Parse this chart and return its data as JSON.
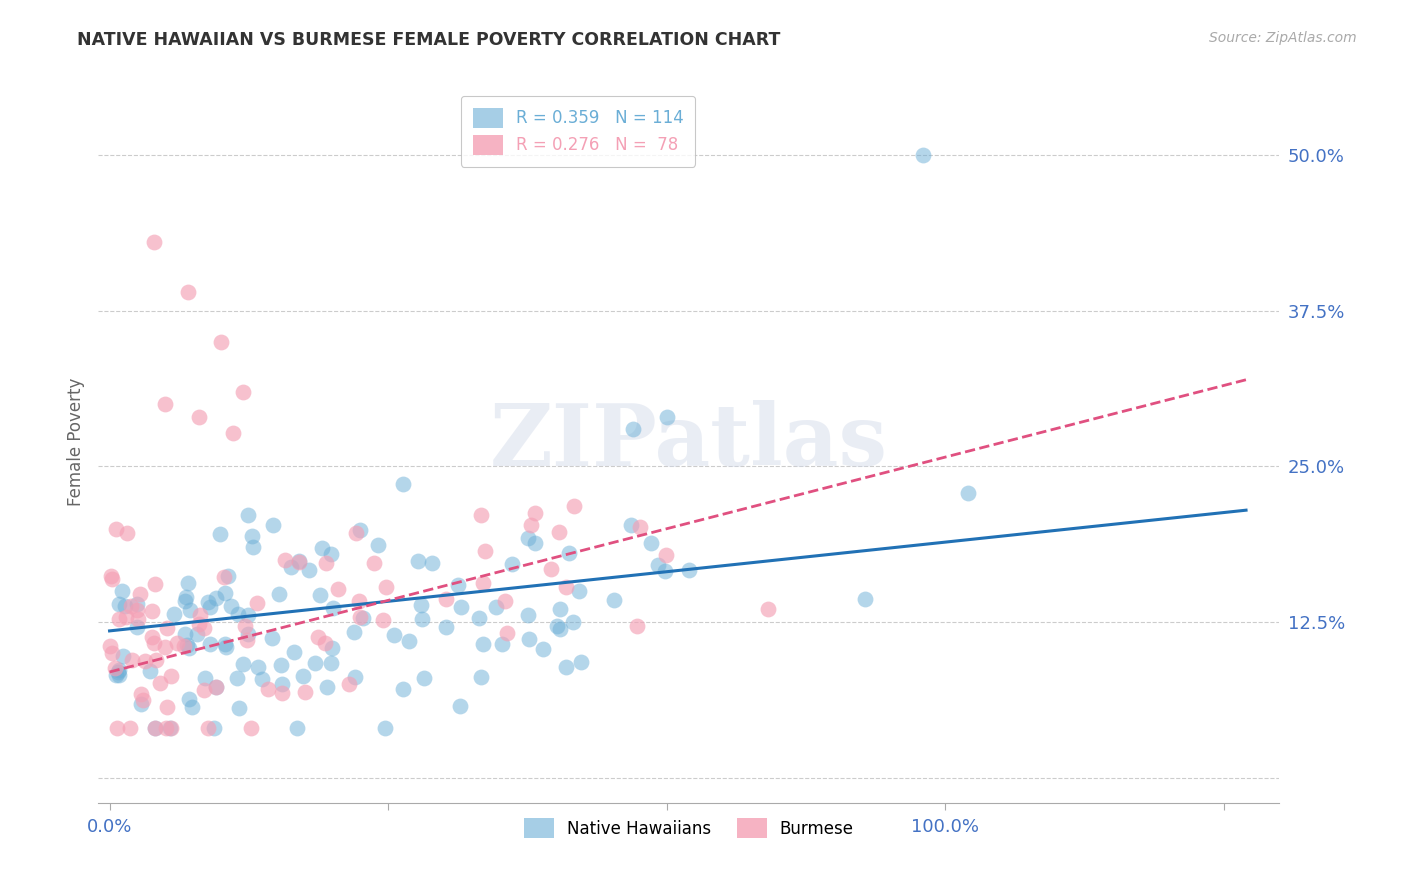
{
  "title": "NATIVE HAWAIIAN VS BURMESE FEMALE POVERTY CORRELATION CHART",
  "source": "Source: ZipAtlas.com",
  "ylabel": "Female Poverty",
  "native_hawaiian_color": "#6baed6",
  "burmese_color": "#f4a0b5",
  "trend_nh_color": "#2171b5",
  "trend_burmese_color": "#e05080",
  "background_color": "#ffffff",
  "grid_color": "#cccccc",
  "title_color": "#333333",
  "axis_label_color": "#4472c4",
  "native_hawaiian_R": 0.359,
  "native_hawaiian_N": 114,
  "burmese_R": 0.276,
  "burmese_N": 78,
  "watermark_text": "ZIPatlas",
  "legend_upper": {
    "series1_label": "R = 0.359   N = 114",
    "series2_label": "R = 0.276   N =  78",
    "series1_color": "#6baed6",
    "series2_color": "#f4a0b5"
  },
  "legend_bottom": {
    "nh_label": "Native Hawaiians",
    "bur_label": "Burmese"
  },
  "ytick_values": [
    0.0,
    0.125,
    0.25,
    0.375,
    0.5
  ],
  "ytick_labels": [
    "",
    "12.5%",
    "25.0%",
    "37.5%",
    "50.0%"
  ],
  "xtick_values": [
    0.0,
    1.0
  ],
  "xtick_labels": [
    "0.0%",
    "100.0%"
  ],
  "xlim": [
    -0.01,
    1.05
  ],
  "ylim": [
    -0.02,
    0.56
  ]
}
